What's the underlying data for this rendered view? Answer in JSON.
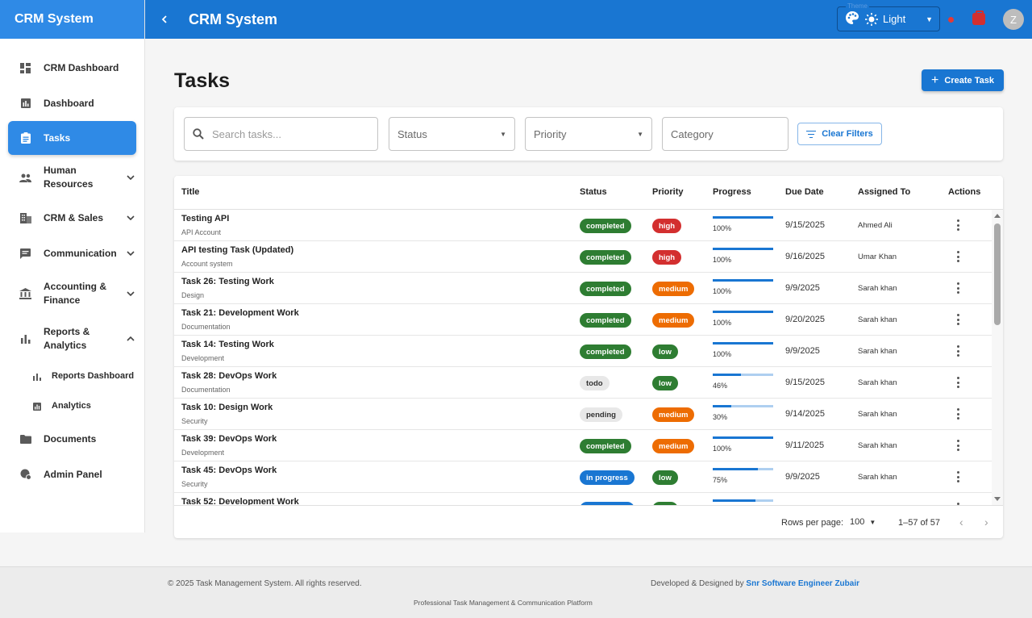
{
  "app": {
    "brand": "CRM System",
    "header_title": "CRM System"
  },
  "theme": {
    "legend": "Theme",
    "value": "Light"
  },
  "user": {
    "avatar_initial": "Z"
  },
  "sidebar": {
    "items": [
      {
        "label": "CRM Dashboard",
        "icon": "dashboard-icon"
      },
      {
        "label": "Dashboard",
        "icon": "bar-chart-icon"
      },
      {
        "label": "Tasks",
        "icon": "clipboard-icon",
        "active": true
      },
      {
        "label": "Human Resources",
        "icon": "people-icon",
        "expandable": true
      },
      {
        "label": "CRM & Sales",
        "icon": "building-icon",
        "expandable": true
      },
      {
        "label": "Communication",
        "icon": "chat-icon",
        "expandable": true
      },
      {
        "label": "Accounting & Finance",
        "icon": "bank-icon",
        "expandable": true
      },
      {
        "label": "Reports & Analytics",
        "icon": "analytics-icon",
        "expanded": true
      },
      {
        "label": "Reports Dashboard",
        "icon": "bar-chart-icon",
        "sub": true
      },
      {
        "label": "Analytics",
        "icon": "analytics-box-icon",
        "sub": true
      },
      {
        "label": "Documents",
        "icon": "folder-icon"
      },
      {
        "label": "Admin Panel",
        "icon": "admin-icon"
      }
    ]
  },
  "main": {
    "title": "Tasks",
    "create_label": "Create Task"
  },
  "filters": {
    "search_placeholder": "Search tasks...",
    "status_label": "Status",
    "priority_label": "Priority",
    "category_placeholder": "Category",
    "clear_label": "Clear Filters"
  },
  "table": {
    "columns": [
      "Title",
      "Status",
      "Priority",
      "Progress",
      "Due Date",
      "Assigned To",
      "Actions"
    ],
    "rows": [
      {
        "title": "Testing API",
        "category": "API Account",
        "status": "completed",
        "priority": "high",
        "progress": 100,
        "progress_label": "100%",
        "due": "9/15/2025",
        "assigned": "Ahmed Ali"
      },
      {
        "title": "API testing Task (Updated)",
        "category": "Account system",
        "status": "completed",
        "priority": "high",
        "progress": 100,
        "progress_label": "100%",
        "due": "9/16/2025",
        "assigned": "Umar Khan"
      },
      {
        "title": "Task 26: Testing Work",
        "category": "Design",
        "status": "completed",
        "priority": "medium",
        "progress": 100,
        "progress_label": "100%",
        "due": "9/9/2025",
        "assigned": "Sarah khan"
      },
      {
        "title": "Task 21: Development Work",
        "category": "Documentation",
        "status": "completed",
        "priority": "medium",
        "progress": 100,
        "progress_label": "100%",
        "due": "9/20/2025",
        "assigned": "Sarah khan"
      },
      {
        "title": "Task 14: Testing Work",
        "category": "Development",
        "status": "completed",
        "priority": "low",
        "progress": 100,
        "progress_label": "100%",
        "due": "9/9/2025",
        "assigned": "Sarah khan"
      },
      {
        "title": "Task 28: DevOps Work",
        "category": "Documentation",
        "status": "todo",
        "priority": "low",
        "progress": 46,
        "progress_label": "46%",
        "due": "9/15/2025",
        "assigned": "Sarah khan"
      },
      {
        "title": "Task 10: Design Work",
        "category": "Security",
        "status": "pending",
        "priority": "medium",
        "progress": 30,
        "progress_label": "30%",
        "due": "9/14/2025",
        "assigned": "Sarah khan"
      },
      {
        "title": "Task 39: DevOps Work",
        "category": "Development",
        "status": "completed",
        "priority": "medium",
        "progress": 100,
        "progress_label": "100%",
        "due": "9/11/2025",
        "assigned": "Sarah khan"
      },
      {
        "title": "Task 45: DevOps Work",
        "category": "Security",
        "status": "in progress",
        "priority": "low",
        "progress": 75,
        "progress_label": "75%",
        "due": "9/9/2025",
        "assigned": "Sarah khan"
      },
      {
        "title": "Task 52: Development Work",
        "category": "",
        "status": "in progress",
        "priority": "low",
        "progress": 70,
        "progress_label": "",
        "due": "",
        "assigned": ""
      }
    ],
    "rows_per_page_label": "Rows per page:",
    "rows_per_page": "100",
    "range": "1–57 of 57"
  },
  "colors": {
    "brand": "#1976d2",
    "completed": "#2e7d32",
    "high": "#d32f2f",
    "medium": "#ed6c02",
    "low": "#2e7d32",
    "in_progress": "#1976d2",
    "neutral_chip": "#e8e8e8"
  },
  "footer": {
    "copyright": "© 2025 Task Management System. All rights reserved.",
    "developed_prefix": "Developed & Designed by",
    "developer": "Snr Software Engineer Zubair",
    "tagline": "Professional Task Management & Communication Platform"
  }
}
